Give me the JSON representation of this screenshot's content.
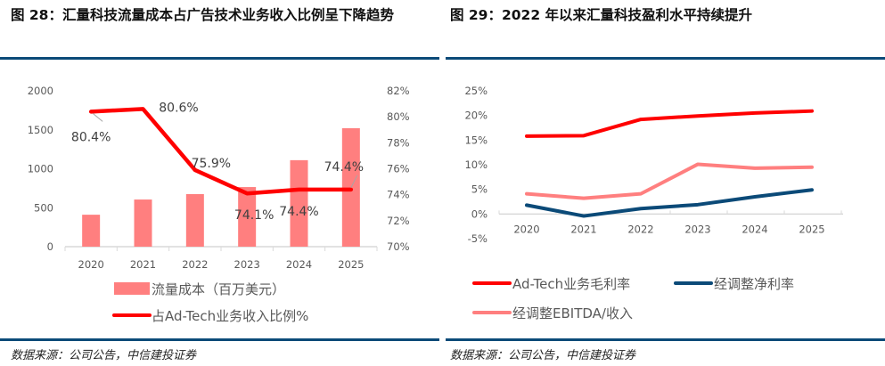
{
  "figures": [
    {
      "title": "图 28：汇量科技流量成本占广告技术业务收入比例呈下降趋势",
      "source": "数据来源：公司公告，中信建投证券"
    },
    {
      "title": "图 29：2022 年以来汇量科技盈利水平持续提升",
      "source": "数据来源：公司公告，中信建投证券"
    }
  ],
  "colors": {
    "bar": "#ff7f7f",
    "red_line": "#ff0000",
    "navy_line": "#0b4a78",
    "pink_line": "#ff7f7f",
    "rule": "#0b4a78",
    "axis": "#d9d9d9"
  },
  "chart_data": [
    {
      "type": "bar",
      "title": "汇量科技流量成本占广告技术业务收入比例呈下降趋势",
      "categories": [
        "2020",
        "2021",
        "2022",
        "2023",
        "2024",
        "2025"
      ],
      "series": [
        {
          "name": "流量成本（百万美元）",
          "kind": "bar",
          "axis": "left",
          "values": [
            410,
            605,
            675,
            765,
            1110,
            1520
          ]
        },
        {
          "name": "占Ad-Tech业务收入比例%",
          "kind": "line",
          "axis": "right",
          "values": [
            80.4,
            80.6,
            75.9,
            74.1,
            74.4,
            74.4
          ],
          "labels": [
            "80.4%",
            "80.6%",
            "75.9%",
            "74.1%",
            "74.4%",
            "74.4%"
          ]
        }
      ],
      "left_axis": {
        "ylim": [
          0,
          2000
        ],
        "ticks": [
          "0",
          "500",
          "1000",
          "1500",
          "2000"
        ]
      },
      "right_axis": {
        "ylim": [
          70,
          82
        ],
        "ticks": [
          "70%",
          "72%",
          "74%",
          "76%",
          "78%",
          "80%",
          "82%"
        ]
      },
      "grid": false,
      "legend": "bottom"
    },
    {
      "type": "line",
      "title": "2022 年以来汇量科技盈利水平持续提升",
      "categories": [
        "2020",
        "2021",
        "2022",
        "2023",
        "2024",
        "2025"
      ],
      "series": [
        {
          "name": "Ad-Tech业务毛利率",
          "color_key": "red_line",
          "values": [
            15.8,
            15.9,
            19.2,
            19.9,
            20.5,
            20.9
          ]
        },
        {
          "name": "经调整净利率",
          "color_key": "navy_line",
          "values": [
            1.8,
            -0.4,
            1.1,
            1.9,
            3.5,
            4.9
          ]
        },
        {
          "name": "经调整EBITDA/收入",
          "color_key": "pink_line",
          "values": [
            4.1,
            3.2,
            4.1,
            10.1,
            9.3,
            9.5
          ]
        }
      ],
      "ylim": [
        -5,
        25
      ],
      "yticks": [
        "-5%",
        "0%",
        "5%",
        "10%",
        "15%",
        "20%",
        "25%"
      ],
      "grid": false,
      "legend": "bottom"
    }
  ]
}
